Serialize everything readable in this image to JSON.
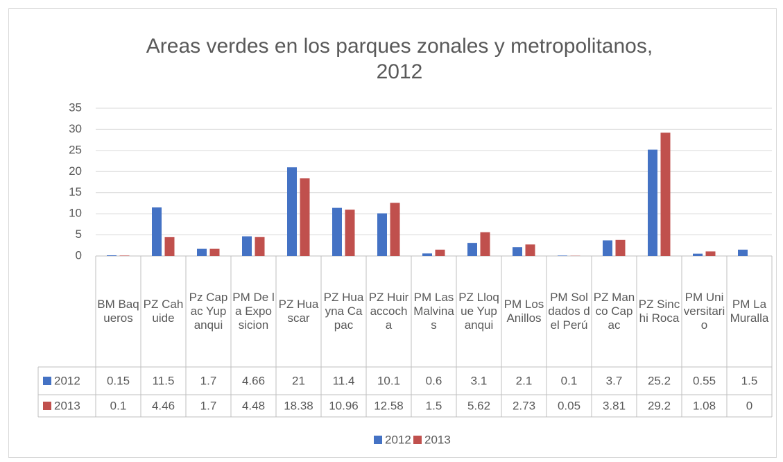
{
  "chart_data": {
    "type": "bar",
    "title": "Areas verdes en los parques zonales y metropolitanos, 2012",
    "categories": [
      "BM Baqueros",
      "PZ Cahuide",
      "Pz Capac Yupanqui",
      "PM De la Exposicion",
      "PZ Huascar",
      "PZ Huayna Capac",
      "PZ Huiraccocha",
      "PM Las Malvinas",
      "PZ Lloque Yupanqui",
      "PM Los Anillos",
      "PM Soldados del Perú",
      "PZ Manco Capac",
      "PZ Sinchi Roca",
      "PM Universitario",
      "PM La Muralla"
    ],
    "series": [
      {
        "name": "2012",
        "color": "#4472c4",
        "values": [
          0.15,
          11.5,
          1.7,
          4.66,
          21,
          11.4,
          10.1,
          0.6,
          3.1,
          2.1,
          0.1,
          3.7,
          25.2,
          0.55,
          1.5
        ]
      },
      {
        "name": "2013",
        "color": "#c0504d",
        "values": [
          0.1,
          4.46,
          1.7,
          4.48,
          18.38,
          10.96,
          12.58,
          1.5,
          5.62,
          2.73,
          0.05,
          3.81,
          29.2,
          1.08,
          0
        ]
      }
    ],
    "ylim": [
      0,
      35
    ],
    "yticks": [
      0,
      5,
      10,
      15,
      20,
      25,
      30,
      35
    ],
    "grid": true,
    "legend": "bottom"
  }
}
